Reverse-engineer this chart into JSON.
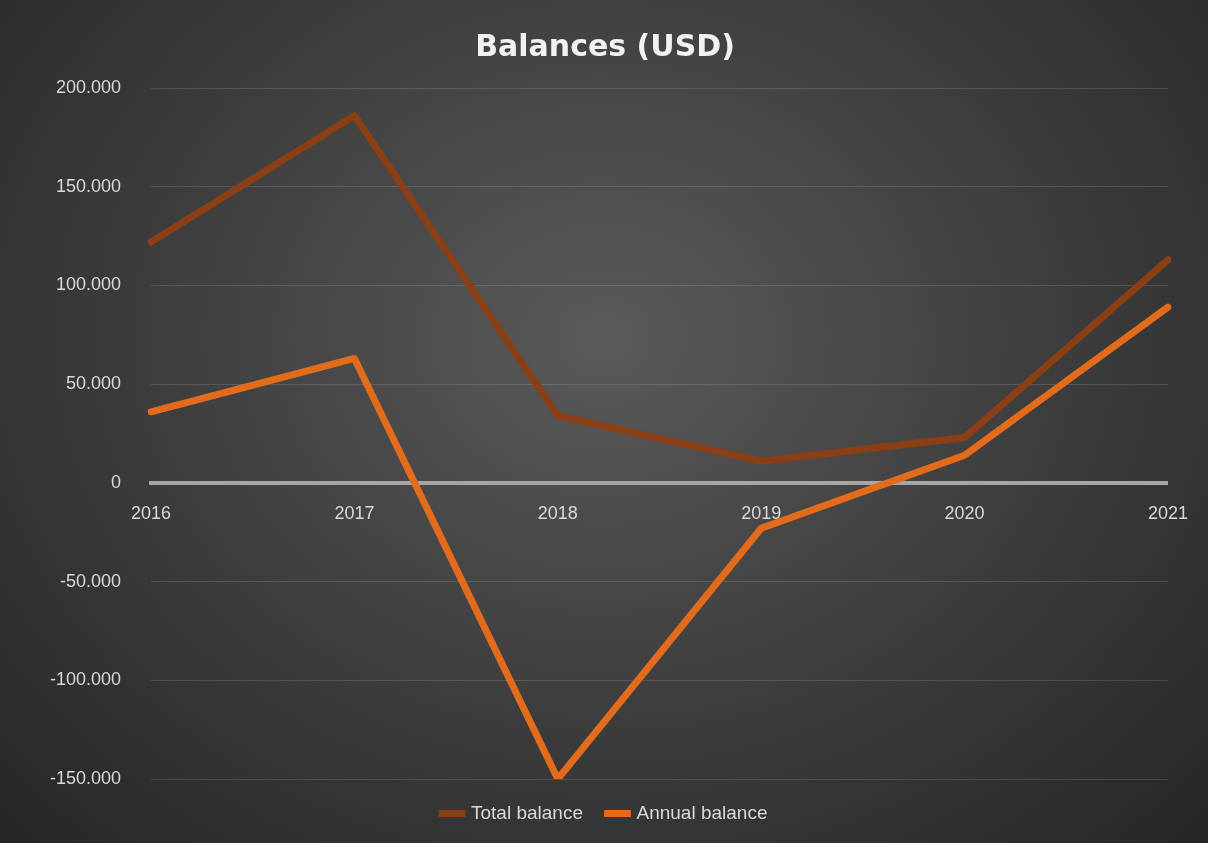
{
  "chart_data": {
    "type": "line",
    "title": "Balances (USD)",
    "categories": [
      "2016",
      "2017",
      "2018",
      "2019",
      "2020",
      "2021"
    ],
    "series": [
      {
        "name": "Total balance",
        "color": "#8b3f14",
        "values": [
          122000,
          186000,
          34000,
          11000,
          23000,
          113000
        ]
      },
      {
        "name": "Annual balance",
        "color": "#e36b1c",
        "values": [
          36000,
          63000,
          -150000,
          -23000,
          14000,
          89000
        ]
      }
    ],
    "ylim": [
      -150000,
      200000
    ],
    "yticks": [
      {
        "value": -150000,
        "label": "-150.000"
      },
      {
        "value": -100000,
        "label": "-100.000"
      },
      {
        "value": -50000,
        "label": "-50.000"
      },
      {
        "value": 0,
        "label": "0"
      },
      {
        "value": 50000,
        "label": "50.000"
      },
      {
        "value": 100000,
        "label": "100.000"
      },
      {
        "value": 150000,
        "label": "150.000"
      },
      {
        "value": 200000,
        "label": "200.000"
      }
    ],
    "grid": "y",
    "legend": "bottom",
    "marker": "none",
    "line_style": "solid"
  }
}
